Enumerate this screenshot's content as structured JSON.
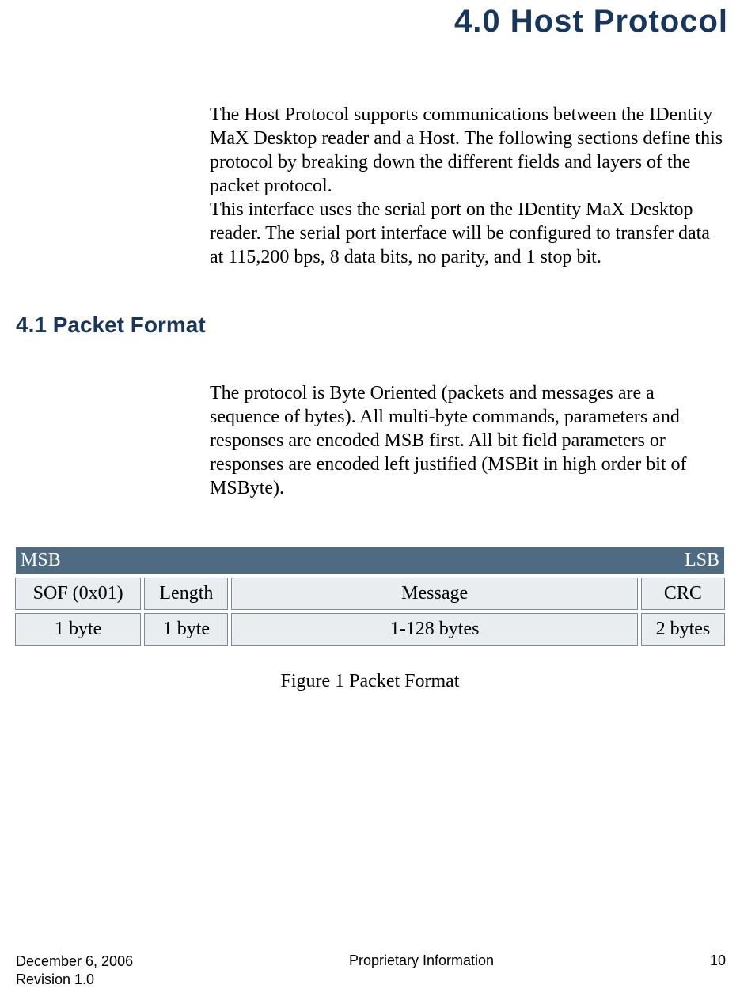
{
  "colors": {
    "heading_color": "#17365d",
    "table_header_bg": "#4f6b82",
    "table_header_fg": "#ffffff",
    "table_cell_bg": "#e9edf0",
    "table_cell_border": "#7a8aa0",
    "body_text": "#000000",
    "page_bg": "#ffffff"
  },
  "chapter": {
    "number_and_title": "4.0 Host Protocol"
  },
  "intro": {
    "p1": "The Host Protocol supports communications between the IDentity MaX Desktop reader and a Host.  The following sections define this protocol by breaking down the different fields and layers of the packet protocol.",
    "p2": "This interface uses the serial port on the IDentity MaX Desktop reader.  The serial port interface will be configured to transfer data at 115,200 bps, 8 data bits, no parity, and 1 stop bit."
  },
  "section": {
    "number_and_title": "4.1  Packet Format",
    "body": "The protocol is Byte Oriented (packets and messages are a sequence of bytes).  All multi-byte commands, parameters and responses are encoded MSB first.  All bit field parameters or responses are encoded left justified (MSBit in high order bit of MSByte)."
  },
  "packet_table": {
    "type": "table",
    "header_left": "MSB",
    "header_right": "LSB",
    "column_widths_percent": [
      18,
      12,
      58,
      12
    ],
    "rows": [
      [
        "SOF (0x01)",
        "Length",
        "Message",
        "CRC"
      ],
      [
        "1 byte",
        "1 byte",
        "1-128 bytes",
        "2 bytes"
      ]
    ],
    "caption": "Figure 1 Packet Format"
  },
  "footer": {
    "date": "December 6, 2006",
    "revision": "Revision 1.0",
    "center": "Proprietary Information",
    "page_number": "10"
  }
}
